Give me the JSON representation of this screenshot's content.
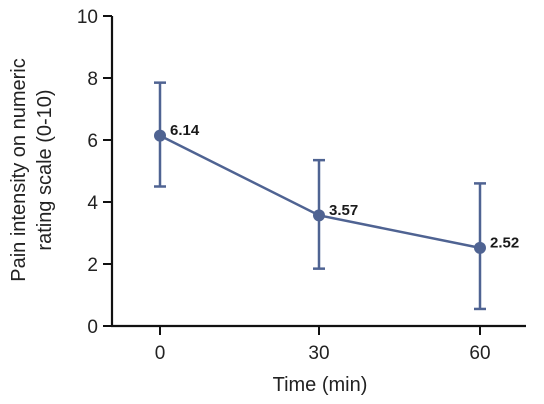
{
  "chart_data": {
    "type": "line",
    "title": "",
    "xlabel": "Time (min)",
    "ylabel_lines": [
      "Pain intensity on numeric",
      "rating scale (0-10)"
    ],
    "x_categories": [
      "0",
      "30",
      "60"
    ],
    "y_ticks": [
      "0",
      "2",
      "4",
      "6",
      "8",
      "10"
    ],
    "ylim": [
      0,
      10
    ],
    "series": [
      {
        "color": "#4f6392",
        "points": [
          {
            "x": "0",
            "y": 6.14,
            "err_low": 4.5,
            "err_high": 7.85,
            "label": "6.14"
          },
          {
            "x": "30",
            "y": 3.57,
            "err_low": 1.85,
            "err_high": 5.35,
            "label": "3.57"
          },
          {
            "x": "60",
            "y": 2.52,
            "err_low": 0.55,
            "err_high": 4.6,
            "label": "2.52"
          }
        ]
      }
    ],
    "grid": false,
    "error_bars": true
  }
}
